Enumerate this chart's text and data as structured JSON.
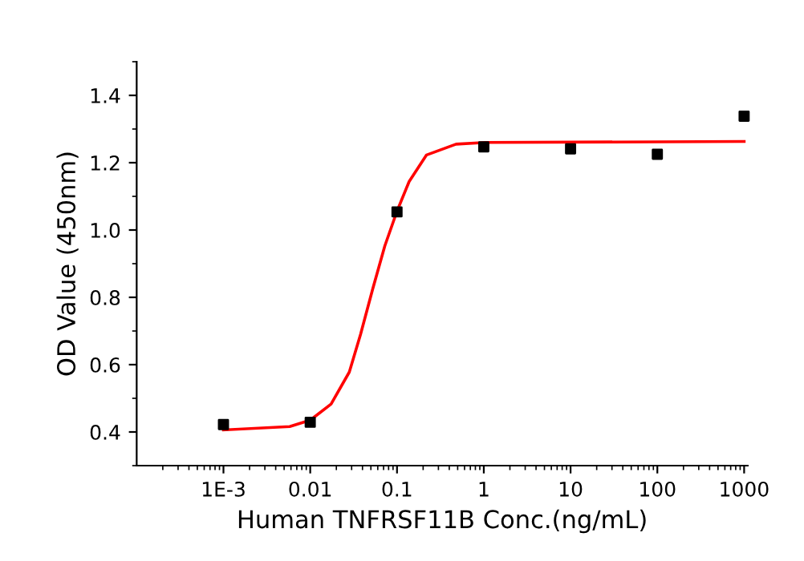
{
  "chart_data": {
    "type": "scatter",
    "xlabel": "Human TNFRSF11B Conc.(ng/mL)",
    "ylabel": "OD Value (450nm)",
    "log": "x",
    "grid": false,
    "legend": false,
    "xlim": [
      0.0001,
      1100
    ],
    "ylim": [
      0.3,
      1.5
    ],
    "xticks": [
      {
        "value": 0.001,
        "label": "1E-3"
      },
      0.01,
      0.1,
      1,
      10,
      100,
      1000
    ],
    "yticks": [
      {
        "value": 0.4,
        "label": "0.4"
      },
      {
        "value": 0.6,
        "label": "0.6"
      },
      {
        "value": 0.8,
        "label": "0.8"
      },
      {
        "value": 1.0,
        "label": "1.0"
      },
      {
        "value": 1.2,
        "label": "1.2"
      },
      {
        "value": 1.4,
        "label": "1.4"
      }
    ],
    "series": [
      {
        "color": "#000000",
        "marker": "square",
        "x": [
          0.001,
          0.01,
          0.1,
          1,
          10,
          100,
          1000
        ],
        "values": [
          0.422,
          0.429,
          1.054,
          1.247,
          1.241,
          1.225,
          1.338
        ]
      },
      {
        "type": "line",
        "color": "#ff0000",
        "marker": "none",
        "line_style": "solid",
        "x": [
          0.001,
          0.0058,
          0.01,
          0.0174,
          0.0282,
          0.038,
          0.0525,
          0.0724,
          0.1,
          0.138,
          0.219,
          0.479,
          1.05,
          1000
        ],
        "values": [
          0.406,
          0.416,
          0.435,
          0.483,
          0.578,
          0.69,
          0.825,
          0.953,
          1.056,
          1.144,
          1.223,
          1.255,
          1.26,
          1.263
        ]
      }
    ]
  }
}
